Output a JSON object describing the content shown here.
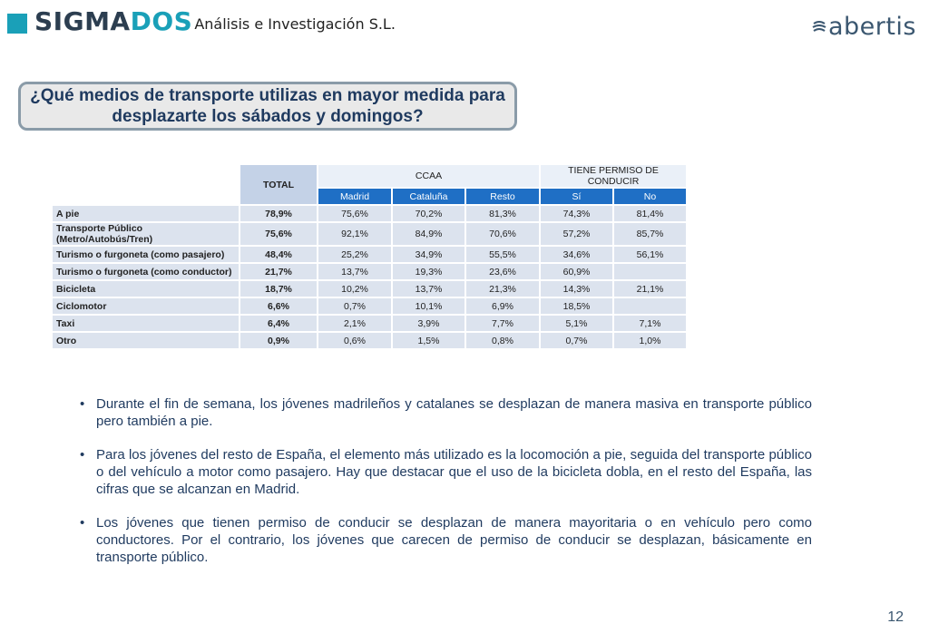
{
  "header": {
    "logo_part1": "SIGMA",
    "logo_part2": "DOS",
    "company": "Análisis e Investigación S.L.",
    "brand_right": "abertis"
  },
  "question": "¿Qué medios de transporte utilizas en mayor medida para desplazarte los sábados y domingos?",
  "table": {
    "total_label": "TOTAL",
    "group_ccaa": "CCAA",
    "group_permiso": "TIENE PERMISO DE CONDUCIR",
    "subheaders": [
      "Madrid",
      "Cataluña",
      "Resto",
      "Sí",
      "No"
    ],
    "rows": [
      {
        "label": "A pie",
        "total": "78,9%",
        "madrid": "75,6%",
        "cataluna": "70,2%",
        "resto": "81,3%",
        "si": "74,3%",
        "no": "81,4%"
      },
      {
        "label": "Transporte Público (Metro/Autobús/Tren)",
        "total": "75,6%",
        "madrid": "92,1%",
        "cataluna": "84,9%",
        "resto": "70,6%",
        "si": "57,2%",
        "no": "85,7%"
      },
      {
        "label": "Turismo o furgoneta (como pasajero)",
        "total": "48,4%",
        "madrid": "25,2%",
        "cataluna": "34,9%",
        "resto": "55,5%",
        "si": "34,6%",
        "no": "56,1%"
      },
      {
        "label": "Turismo o furgoneta (como conductor)",
        "total": "21,7%",
        "madrid": "13,7%",
        "cataluna": "19,3%",
        "resto": "23,6%",
        "si": "60,9%",
        "no": ""
      },
      {
        "label": "Bicicleta",
        "total": "18,7%",
        "madrid": "10,2%",
        "cataluna": "13,7%",
        "resto": "21,3%",
        "si": "14,3%",
        "no": "21,1%"
      },
      {
        "label": "Ciclomotor",
        "total": "6,6%",
        "madrid": "0,7%",
        "cataluna": "10,1%",
        "resto": "6,9%",
        "si": "18,5%",
        "no": ""
      },
      {
        "label": "Taxi",
        "total": "6,4%",
        "madrid": "2,1%",
        "cataluna": "3,9%",
        "resto": "7,7%",
        "si": "5,1%",
        "no": "7,1%"
      },
      {
        "label": "Otro",
        "total": "0,9%",
        "madrid": "0,6%",
        "cataluna": "1,5%",
        "resto": "0,8%",
        "si": "0,7%",
        "no": "1,0%"
      }
    ]
  },
  "bullets": [
    "Durante el fin de semana, los jóvenes madrileños  y catalanes se desplazan de manera masiva en transporte público pero también a pie.",
    "Para los jóvenes del resto de España, el elemento más utilizado es la locomoción a pie, seguida del transporte público o del vehículo a motor como pasajero.  Hay que destacar que el uso de la bicicleta dobla, en el resto del España, las cifras que se alcanzan en Madrid.",
    "Los jóvenes que tienen permiso de conducir se desplazan de manera mayoritaria o en vehículo pero como conductores. Por el contrario, los jóvenes que carecen de permiso de conducir se desplazan, básicamente en transporte público."
  ],
  "bullet_symbol": "•",
  "page_number": "12",
  "colors": {
    "accent": "#1aa0b8",
    "header_blue": "#1f6fc5",
    "cell_bg": "#dce3ee",
    "text_navy": "#1f3a5f"
  }
}
